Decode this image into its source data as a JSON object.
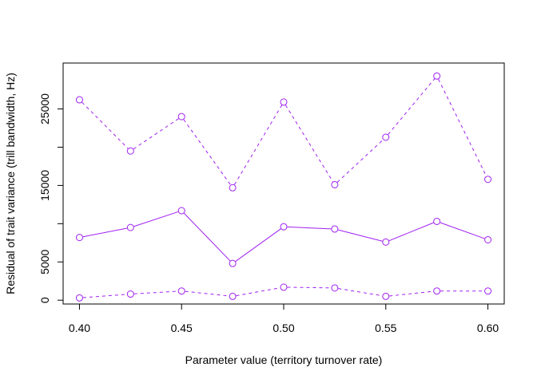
{
  "chart_data": {
    "type": "line",
    "xlabel": "Parameter value (territory turnover rate)",
    "ylabel": "Residual of trait variance (trill bandwidth, Hz)",
    "x": [
      0.4,
      0.425,
      0.45,
      0.475,
      0.5,
      0.525,
      0.55,
      0.575,
      0.6
    ],
    "xlim": [
      0.392,
      0.608
    ],
    "ylim": [
      -500,
      31000
    ],
    "x_ticks": [
      "0.40",
      "0.45",
      "0.50",
      "0.55",
      "0.60"
    ],
    "x_tick_values": [
      0.4,
      0.45,
      0.5,
      0.55,
      0.6
    ],
    "y_ticks": [
      "0",
      "5000",
      "15000",
      "25000"
    ],
    "y_tick_values": [
      0,
      5000,
      15000,
      25000
    ],
    "y_minor_ticks": [
      10000,
      20000
    ],
    "grid": false,
    "legend": "none",
    "color": "#a020f0",
    "marker": "open-circle",
    "series": [
      {
        "values": [
          26200,
          19500,
          24000,
          14700,
          25900,
          15100,
          21300,
          29300,
          15800
        ],
        "line_style": "dashed"
      },
      {
        "values": [
          8200,
          9500,
          11700,
          4800,
          9600,
          9300,
          7600,
          10300,
          7900
        ],
        "line_style": "solid"
      },
      {
        "values": [
          300,
          800,
          1200,
          500,
          1700,
          1600,
          500,
          1200,
          1200
        ],
        "line_style": "dashed"
      }
    ]
  }
}
